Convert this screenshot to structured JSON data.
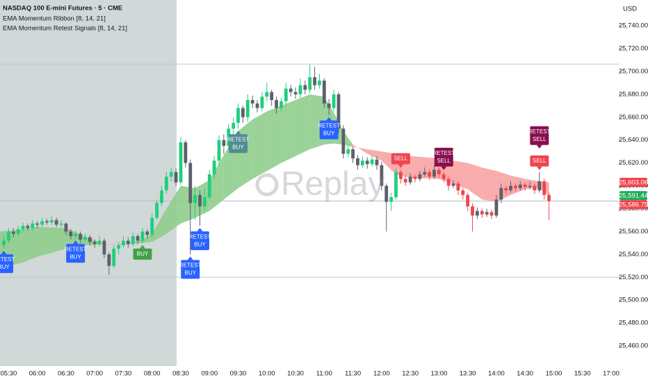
{
  "chart_data": {
    "type": "candlestick",
    "title": "NASDAQ 100 E-mini Futures · 5 · CME",
    "indicators": [
      "EMA Momentum Ribbon [8, 14, 21]",
      "EMA Momentum Retest Signals [8, 14, 21]"
    ],
    "currency": "USD",
    "watermark": "Replay",
    "xlim": [
      "05:21",
      "17:08"
    ],
    "session_gap": [
      "16:00",
      "17:00"
    ],
    "xticks": [
      "05:30",
      "06:00",
      "06:30",
      "07:00",
      "07:30",
      "08:00",
      "08:30",
      "09:00",
      "09:30",
      "10:00",
      "10:30",
      "11:00",
      "11:30",
      "12:00",
      "12:30",
      "13:00",
      "13:30",
      "14:00",
      "14:30",
      "15:00",
      "15:30",
      "17:00"
    ],
    "ylim": [
      25442.4,
      25762.5
    ],
    "yticks": [
      {
        "value": 25460,
        "label": "25,460.00"
      },
      {
        "value": 25480,
        "label": "25,480.00"
      },
      {
        "value": 25500,
        "label": "25,500.00"
      },
      {
        "value": 25520,
        "label": "25,520.00"
      },
      {
        "value": 25540,
        "label": "25,540.00"
      },
      {
        "value": 25560,
        "label": "25,560.00"
      },
      {
        "value": 25580,
        "label": "25,580.00"
      },
      {
        "value": 25600,
        "label": "25,600.00"
      },
      {
        "value": 25620,
        "label": "25,620.00"
      },
      {
        "value": 25640,
        "label": "25,640.00"
      },
      {
        "value": 25660,
        "label": "25,660.00"
      },
      {
        "value": 25680,
        "label": "25,680.00"
      },
      {
        "value": 25700,
        "label": "25,700.00"
      },
      {
        "value": 25720,
        "label": "25,720.00"
      },
      {
        "value": 25740,
        "label": "25,740.00"
      }
    ],
    "colors": {
      "bull": "#1fcf7c",
      "bear": "#f0454e",
      "neutral": "#5d606b",
      "ribbon_bull": "#8fcd8d",
      "ribbon_bear": "#f7a3a3"
    },
    "start_side": "buy",
    "x": [
      "05:25",
      "05:30",
      "05:35",
      "05:40",
      "05:45",
      "05:50",
      "05:55",
      "06:00",
      "06:05",
      "06:10",
      "06:15",
      "06:20",
      "06:25",
      "06:30",
      "06:35",
      "06:40",
      "06:45",
      "06:50",
      "06:55",
      "07:00",
      "07:05",
      "07:10",
      "07:15",
      "07:20",
      "07:25",
      "07:30",
      "07:35",
      "07:40",
      "07:45",
      "07:50",
      "07:55",
      "08:00",
      "08:05",
      "08:10",
      "08:15",
      "08:20",
      "08:25",
      "08:30",
      "08:35",
      "08:40",
      "08:45",
      "08:50",
      "08:55",
      "09:00",
      "09:05",
      "09:10",
      "09:15",
      "09:20",
      "09:25",
      "09:30",
      "09:35",
      "09:40",
      "09:45",
      "09:50",
      "09:55",
      "10:00",
      "10:05",
      "10:10",
      "10:15",
      "10:20",
      "10:25",
      "10:30",
      "10:35",
      "10:40",
      "10:45",
      "10:50",
      "10:55",
      "11:00",
      "11:05",
      "11:10",
      "11:15",
      "11:20",
      "11:25",
      "11:30",
      "11:35",
      "11:40",
      "11:45",
      "11:50",
      "11:55",
      "12:00",
      "12:05",
      "12:10",
      "12:15",
      "12:20",
      "12:25",
      "12:30",
      "12:35",
      "12:40",
      "12:45",
      "12:50",
      "12:55",
      "13:00",
      "13:05",
      "13:10",
      "13:15",
      "13:20",
      "13:25",
      "13:30",
      "13:35",
      "13:40",
      "13:45",
      "13:50",
      "13:55",
      "14:00",
      "14:05",
      "14:10",
      "14:15",
      "14:20",
      "14:25",
      "14:30",
      "14:35",
      "14:40",
      "14:45",
      "14:50",
      "14:55"
    ],
    "ohlc": [
      [
        25548,
        25557,
        25545,
        25552
      ],
      [
        25552,
        25563,
        25550,
        25560
      ],
      [
        25560,
        25563,
        25555,
        25558
      ],
      [
        25558,
        25565,
        25556,
        25562
      ],
      [
        25562,
        25568,
        25560,
        25565
      ],
      [
        25565,
        25567,
        25561,
        25563
      ],
      [
        25563,
        25570,
        25561,
        25567
      ],
      [
        25567,
        25569,
        25563,
        25566
      ],
      [
        25566,
        25572,
        25564,
        25569
      ],
      [
        25569,
        25571,
        25566,
        25568
      ],
      [
        25568,
        25574,
        25566,
        25570
      ],
      [
        25570,
        25572,
        25564,
        25566
      ],
      [
        25566,
        25570,
        25564,
        25567
      ],
      [
        25567,
        25568,
        25557,
        25560
      ],
      [
        25560,
        25562,
        25553,
        25556
      ],
      [
        25556,
        25561,
        25554,
        25558
      ],
      [
        25558,
        25560,
        25550,
        25553
      ],
      [
        25553,
        25558,
        25551,
        25555
      ],
      [
        25555,
        25557,
        25548,
        25551
      ],
      [
        25551,
        25553,
        25546,
        25549
      ],
      [
        25549,
        25556,
        25547,
        25552
      ],
      [
        25552,
        25554,
        25537,
        25540
      ],
      [
        25540,
        25542,
        25522,
        25530
      ],
      [
        25530,
        25548,
        25528,
        25545
      ],
      [
        25545,
        25551,
        25540,
        25548
      ],
      [
        25548,
        25556,
        25546,
        25552
      ],
      [
        25552,
        25555,
        25546,
        25549
      ],
      [
        25549,
        25559,
        25547,
        25556
      ],
      [
        25556,
        25558,
        25549,
        25552
      ],
      [
        25552,
        25563,
        25550,
        25560
      ],
      [
        25560,
        25562,
        25554,
        25557
      ],
      [
        25557,
        25576,
        25555,
        25572
      ],
      [
        25572,
        25588,
        25570,
        25585
      ],
      [
        25585,
        25600,
        25582,
        25596
      ],
      [
        25596,
        25612,
        25593,
        25608
      ],
      [
        25608,
        25616,
        25604,
        25612
      ],
      [
        25612,
        25615,
        25600,
        25603
      ],
      [
        25603,
        25643,
        25601,
        25638
      ],
      [
        25638,
        25640,
        25616,
        25620
      ],
      [
        25620,
        25623,
        25540,
        25585
      ],
      [
        25585,
        25600,
        25570,
        25592
      ],
      [
        25592,
        25596,
        25565,
        25582
      ],
      [
        25582,
        25598,
        25578,
        25590
      ],
      [
        25590,
        25614,
        25588,
        25610
      ],
      [
        25610,
        25626,
        25606,
        25622
      ],
      [
        25622,
        25644,
        25618,
        25640
      ],
      [
        25640,
        25645,
        25628,
        25635
      ],
      [
        25635,
        25654,
        25632,
        25650
      ],
      [
        25650,
        25660,
        25645,
        25655
      ],
      [
        25655,
        25672,
        25650,
        25668
      ],
      [
        25668,
        25670,
        25655,
        25660
      ],
      [
        25660,
        25680,
        25656,
        25675
      ],
      [
        25675,
        25679,
        25668,
        25672
      ],
      [
        25672,
        25675,
        25664,
        25668
      ],
      [
        25668,
        25682,
        25665,
        25678
      ],
      [
        25678,
        25690,
        25674,
        25682
      ],
      [
        25682,
        25684,
        25670,
        25675
      ],
      [
        25675,
        25678,
        25663,
        25668
      ],
      [
        25668,
        25677,
        25665,
        25674
      ],
      [
        25674,
        25690,
        25670,
        25685
      ],
      [
        25685,
        25688,
        25678,
        25682
      ],
      [
        25682,
        25686,
        25676,
        25680
      ],
      [
        25680,
        25694,
        25677,
        25688
      ],
      [
        25688,
        25692,
        25680,
        25684
      ],
      [
        25684,
        25706,
        25681,
        25695
      ],
      [
        25695,
        25704,
        25684,
        25688
      ],
      [
        25688,
        25698,
        25685,
        25692
      ],
      [
        25692,
        25694,
        25668,
        25672
      ],
      [
        25672,
        25676,
        25662,
        25668
      ],
      [
        25668,
        25684,
        25665,
        25680
      ],
      [
        25680,
        25682,
        25646,
        25650
      ],
      [
        25650,
        25653,
        25624,
        25628
      ],
      [
        25628,
        25636,
        25625,
        25632
      ],
      [
        25632,
        25634,
        25620,
        25624
      ],
      [
        25624,
        25627,
        25614,
        25618
      ],
      [
        25618,
        25626,
        25616,
        25622
      ],
      [
        25622,
        25625,
        25615,
        25619
      ],
      [
        25619,
        25627,
        25617,
        25623
      ],
      [
        25623,
        25626,
        25614,
        25618
      ],
      [
        25618,
        25621,
        25596,
        25600
      ],
      [
        25600,
        25602,
        25560,
        25586
      ],
      [
        25586,
        25594,
        25578,
        25590
      ],
      [
        25590,
        25615,
        25588,
        25612
      ],
      [
        25612,
        25614,
        25602,
        25606
      ],
      [
        25606,
        25609,
        25600,
        25603
      ],
      [
        25603,
        25611,
        25601,
        25608
      ],
      [
        25608,
        25610,
        25603,
        25606
      ],
      [
        25606,
        25613,
        25604,
        25610
      ],
      [
        25610,
        25616,
        25608,
        25612
      ],
      [
        25612,
        25614,
        25605,
        25608
      ],
      [
        25608,
        25618,
        25606,
        25614
      ],
      [
        25614,
        25616,
        25607,
        25610
      ],
      [
        25610,
        25612,
        25603,
        25606
      ],
      [
        25606,
        25608,
        25596,
        25600
      ],
      [
        25600,
        25605,
        25598,
        25602
      ],
      [
        25602,
        25604,
        25592,
        25596
      ],
      [
        25596,
        25598,
        25588,
        25592
      ],
      [
        25592,
        25594,
        25578,
        25582
      ],
      [
        25582,
        25585,
        25560,
        25574
      ],
      [
        25574,
        25581,
        25571,
        25578
      ],
      [
        25578,
        25580,
        25572,
        25575
      ],
      [
        25575,
        25580,
        25573,
        25577
      ],
      [
        25577,
        25579,
        25571,
        25574
      ],
      [
        25574,
        25592,
        25572,
        25588
      ],
      [
        25588,
        25602,
        25585,
        25598
      ],
      [
        25598,
        25600,
        25593,
        25596
      ],
      [
        25596,
        25604,
        25594,
        25600
      ],
      [
        25600,
        25602,
        25595,
        25598
      ],
      [
        25598,
        25604,
        25596,
        25601
      ],
      [
        25601,
        25603,
        25596,
        25599
      ],
      [
        25599,
        25604,
        25597,
        25600
      ],
      [
        25600,
        25602,
        25593,
        25596
      ],
      [
        25596,
        25612,
        25594,
        25604
      ],
      [
        25604,
        25606,
        25588,
        25592
      ],
      [
        25592,
        25594,
        25570,
        25586.75
      ]
    ],
    "ribbon": {
      "x": [
        "05:21",
        "05:45",
        "06:00",
        "06:30",
        "06:50",
        "07:10",
        "07:30",
        "07:50",
        "08:00",
        "08:15",
        "08:30",
        "08:45",
        "09:00",
        "09:15",
        "09:30",
        "09:45",
        "10:00",
        "10:15",
        "10:30",
        "10:45",
        "11:00",
        "11:10",
        "11:20",
        "11:30",
        "11:45",
        "12:00",
        "12:15",
        "12:30",
        "13:00",
        "13:30",
        "13:45",
        "14:00",
        "14:15",
        "14:30",
        "14:45",
        "14:55"
      ],
      "fast": [
        25560,
        25562,
        25564,
        25563,
        25556,
        25549,
        25548,
        25553,
        25558,
        25580,
        25600,
        25598,
        25605,
        25627,
        25648,
        25658,
        25665,
        25670,
        25675,
        25680,
        25678,
        25664,
        25648,
        25636,
        25628,
        25622,
        25610,
        25607,
        25606,
        25597,
        25588,
        25586,
        25592,
        25597,
        25598,
        25591.44
      ],
      "slow": [
        25528,
        25533,
        25538,
        25545,
        25548,
        25549,
        25549,
        25550,
        25551,
        25558,
        25567,
        25572,
        25578,
        25588,
        25598,
        25606,
        25613,
        25620,
        25626,
        25632,
        25636,
        25637,
        25636,
        25634,
        25632,
        25630,
        25628,
        25626,
        25624,
        25620,
        25616,
        25613,
        25609,
        25606,
        25604,
        25603.06
      ]
    },
    "signals": [
      {
        "x": "05:25",
        "side": "buy",
        "lines": [
          "RETEST",
          "BUY"
        ],
        "color": "#2962ff"
      },
      {
        "x": "06:40",
        "side": "buy",
        "lines": [
          "RETEST",
          "BUY"
        ],
        "color": "#2962ff"
      },
      {
        "x": "07:50",
        "side": "buy",
        "lines": [
          "BUY"
        ],
        "color": "#43a047"
      },
      {
        "x": "08:40",
        "side": "buy",
        "lines": [
          "RETEST",
          "BUY"
        ],
        "color": "#2962ff"
      },
      {
        "x": "08:50",
        "side": "buy",
        "lines": [
          "RETEST",
          "BUY"
        ],
        "color": "#2962ff"
      },
      {
        "x": "09:30",
        "side": "buy",
        "lines": [
          "RETEST",
          "BUY"
        ],
        "color": "#4f8d92"
      },
      {
        "x": "11:05",
        "side": "buy",
        "lines": [
          "RETEST",
          "BUY"
        ],
        "color": "#2962ff"
      },
      {
        "x": "12:20",
        "side": "sell",
        "lines": [
          "SELL"
        ],
        "color": "#f0454e"
      },
      {
        "x": "13:05",
        "side": "sell",
        "lines": [
          "RETEST",
          "SELL"
        ],
        "color": "#880e4f"
      },
      {
        "x": "14:45",
        "side": "sell",
        "lines": [
          "SELL"
        ],
        "color": "#f0454e"
      },
      {
        "x": "14:45",
        "side": "sell",
        "lines": [
          "RETEST",
          "SELL"
        ],
        "color": "#880e4f"
      }
    ],
    "hlines": [
      25706.5,
      25520
    ],
    "last_labels": [
      {
        "value": 25603.06,
        "label": "25,603.06",
        "color": "#f0454e"
      },
      {
        "value": 25591.44,
        "label": "25,591.44",
        "color": "#22ab5b"
      },
      {
        "value": 25586.75,
        "label": "25,586.75",
        "color": "#f0454e"
      }
    ]
  }
}
